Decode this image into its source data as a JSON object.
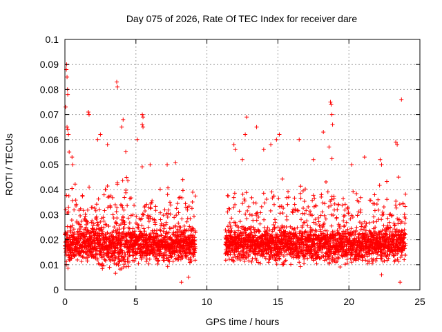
{
  "chart_data": {
    "type": "scatter",
    "title": "Day 075 of 2026, Rate Of TEC Index for receiver dare",
    "xlabel": "GPS time / hours",
    "ylabel": "ROTI / TECUs",
    "xlim": [
      0,
      25
    ],
    "ylim": [
      0,
      0.1
    ],
    "x_ticks": [
      0,
      5,
      10,
      15,
      20,
      25
    ],
    "x_tick_labels": [
      "0",
      "5",
      "10",
      "15",
      "20",
      "25"
    ],
    "y_ticks": [
      0,
      0.01,
      0.02,
      0.03,
      0.04,
      0.05,
      0.06,
      0.07,
      0.08,
      0.09,
      0.1
    ],
    "y_tick_labels": [
      "0",
      "0.01",
      "0.02",
      "0.03",
      "0.04",
      "0.05",
      "0.06",
      "0.07",
      "0.08",
      "0.09",
      "0.1"
    ],
    "grid": true,
    "marker": "plus",
    "color": "#ff0000",
    "segments": [
      {
        "x_start": 0.0,
        "x_end": 9.2
      },
      {
        "x_start": 11.3,
        "x_end": 24.0
      }
    ],
    "points": [
      [
        0.05,
        0.073
      ],
      [
        0.1,
        0.088
      ],
      [
        0.12,
        0.09
      ],
      [
        0.15,
        0.085
      ],
      [
        0.18,
        0.08
      ],
      [
        0.2,
        0.078
      ],
      [
        0.15,
        0.065
      ],
      [
        0.2,
        0.064
      ],
      [
        0.25,
        0.062
      ],
      [
        0.3,
        0.055
      ],
      [
        0.5,
        0.053
      ],
      [
        0.55,
        0.05
      ],
      [
        1.65,
        0.071
      ],
      [
        1.7,
        0.07
      ],
      [
        2.3,
        0.06
      ],
      [
        2.5,
        0.062
      ],
      [
        3.0,
        0.058
      ],
      [
        3.65,
        0.083
      ],
      [
        3.7,
        0.081
      ],
      [
        4.1,
        0.068
      ],
      [
        4.0,
        0.065
      ],
      [
        5.1,
        0.06
      ],
      [
        5.45,
        0.07
      ],
      [
        5.5,
        0.069
      ],
      [
        5.45,
        0.066
      ],
      [
        5.5,
        0.065
      ],
      [
        6.0,
        0.05
      ],
      [
        7.2,
        0.05
      ],
      [
        8.3,
        0.044
      ],
      [
        9.0,
        0.039
      ],
      [
        8.7,
        0.005
      ],
      [
        8.2,
        0.003
      ],
      [
        11.9,
        0.058
      ],
      [
        12.0,
        0.056
      ],
      [
        12.5,
        0.052
      ],
      [
        12.7,
        0.062
      ],
      [
        12.8,
        0.069
      ],
      [
        13.5,
        0.065
      ],
      [
        14.0,
        0.056
      ],
      [
        14.5,
        0.058
      ],
      [
        14.9,
        0.06
      ],
      [
        15.1,
        0.062
      ],
      [
        16.5,
        0.06
      ],
      [
        17.5,
        0.052
      ],
      [
        18.2,
        0.063
      ],
      [
        18.7,
        0.075
      ],
      [
        18.75,
        0.074
      ],
      [
        18.8,
        0.07
      ],
      [
        18.85,
        0.066
      ],
      [
        18.6,
        0.057
      ],
      [
        20.2,
        0.05
      ],
      [
        21.1,
        0.053
      ],
      [
        22.2,
        0.052
      ],
      [
        22.3,
        0.05
      ],
      [
        23.3,
        0.059
      ],
      [
        23.4,
        0.058
      ],
      [
        23.7,
        0.076
      ],
      [
        23.5,
        0.045
      ],
      [
        23.6,
        0.003
      ],
      [
        22.3,
        0.006
      ]
    ]
  }
}
